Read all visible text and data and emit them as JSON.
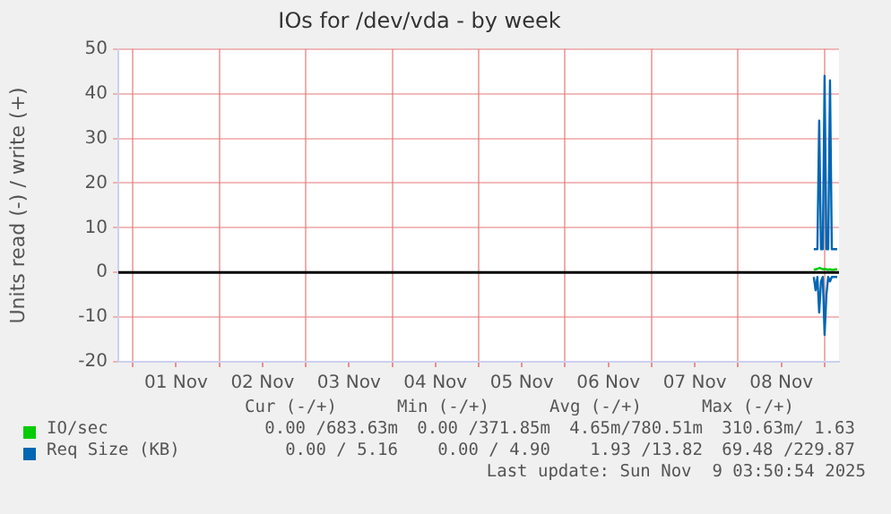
{
  "chart_data": {
    "type": "line",
    "title": "IOs for /dev/vda - by week",
    "ylabel": "Units read (-) / write (+)",
    "xlim": [
      "2025-10-31T20:00",
      "2025-11-09T04:00"
    ],
    "xticks": [
      {
        "value": "2025-11-01T00:00",
        "label": null
      },
      {
        "value": "2025-11-01T12:00",
        "label": "01 Nov"
      },
      {
        "value": "2025-11-02T00:00",
        "label": null
      },
      {
        "value": "2025-11-02T12:00",
        "label": "02 Nov"
      },
      {
        "value": "2025-11-03T00:00",
        "label": null
      },
      {
        "value": "2025-11-03T12:00",
        "label": "03 Nov"
      },
      {
        "value": "2025-11-04T00:00",
        "label": null
      },
      {
        "value": "2025-11-04T12:00",
        "label": "04 Nov"
      },
      {
        "value": "2025-11-05T00:00",
        "label": null
      },
      {
        "value": "2025-11-05T12:00",
        "label": "05 Nov"
      },
      {
        "value": "2025-11-06T00:00",
        "label": null
      },
      {
        "value": "2025-11-06T12:00",
        "label": "06 Nov"
      },
      {
        "value": "2025-11-07T00:00",
        "label": null
      },
      {
        "value": "2025-11-07T12:00",
        "label": "07 Nov"
      },
      {
        "value": "2025-11-08T00:00",
        "label": null
      },
      {
        "value": "2025-11-08T12:00",
        "label": "08 Nov"
      },
      {
        "value": "2025-11-09T00:00",
        "label": null
      }
    ],
    "ylim": [
      -20,
      50
    ],
    "yticks": [
      -20,
      -10,
      0,
      10,
      20,
      30,
      40,
      50
    ],
    "grid": true,
    "legend": "bottom",
    "marker": "none",
    "line_style": "solid",
    "x": [
      "2025-11-08T21:00",
      "2025-11-08T21:30",
      "2025-11-08T22:00",
      "2025-11-08T22:30",
      "2025-11-08T23:00",
      "2025-11-08T23:30",
      "2025-11-09T00:00",
      "2025-11-09T00:30",
      "2025-11-09T01:00",
      "2025-11-09T01:30",
      "2025-11-09T02:00",
      "2025-11-09T02:30",
      "2025-11-09T03:00",
      "2025-11-09T03:30"
    ],
    "series": [
      {
        "name": "IO/sec",
        "color": "#00cc00",
        "values": [
          0.6,
          0.7,
          0.8,
          1.0,
          0.9,
          0.7,
          0.8,
          0.7,
          0.6,
          0.7,
          0.6,
          0.6,
          0.7,
          0.7
        ]
      },
      {
        "name": "Req Size (KB)",
        "color": "#0066b3",
        "values": [
          5.2,
          5.2,
          5.2,
          34,
          5.2,
          5.2,
          44,
          5.2,
          5.2,
          43,
          5.2,
          5.2,
          5.2,
          5.2
        ]
      },
      {
        "color": "#0066b3",
        "values": [
          -1,
          -4,
          -1,
          -9,
          -2,
          -1,
          -14,
          -5,
          -1,
          -2,
          -1,
          -1,
          -1,
          -1
        ]
      }
    ],
    "ref_lines": [
      {
        "axis": "y",
        "value": 0,
        "color": "#000000"
      }
    ],
    "annotations": [
      "Cur (-/+)",
      "Min (-/+)",
      "Avg (-/+)",
      "Max (-/+)",
      "0.00 /683.63m",
      "0.00 /371.85m",
      "4.65m/780.51m",
      "310.63m/ 1.63",
      "0.00 / 5.16",
      "0.00 / 4.90",
      "1.93 /13.82",
      "69.48 /229.87",
      "Last update: Sun Nov  9 03:50:54 2025"
    ]
  }
}
